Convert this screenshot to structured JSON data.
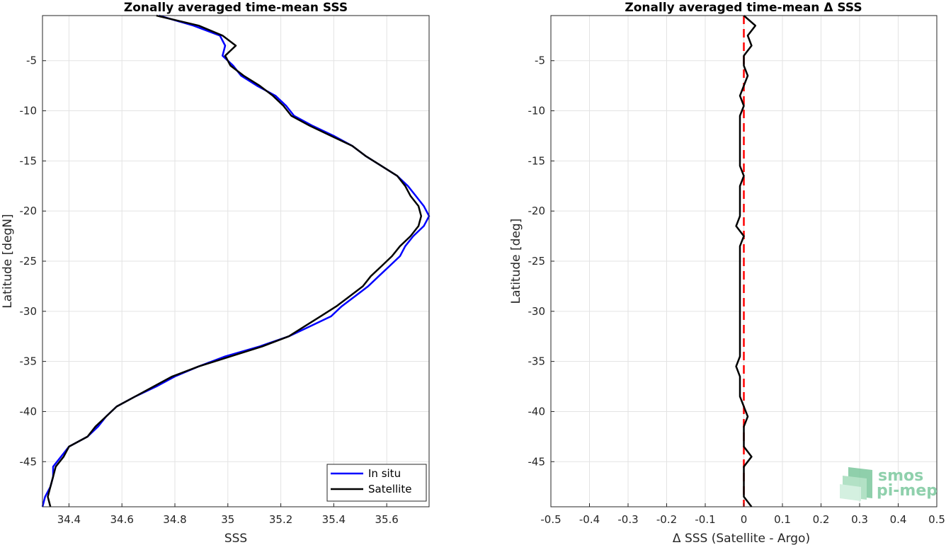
{
  "chart_data": [
    {
      "type": "line",
      "title": "Zonally averaged time-mean SSS",
      "xlabel": "SSS",
      "ylabel": "Latitude [degN]",
      "xlim": [
        34.3,
        35.76
      ],
      "ylim": [
        -49.5,
        -0.5
      ],
      "xticks": [
        "34.4",
        "34.6",
        "34.8",
        "35",
        "35.2",
        "35.4",
        "35.6"
      ],
      "yticks": [
        "-5",
        "-10",
        "-15",
        "-20",
        "-25",
        "-30",
        "-35",
        "-40",
        "-45"
      ],
      "grid": true,
      "legend_position": "bottom-right",
      "latitudes": [
        -0.5,
        -1.5,
        -2.5,
        -3.5,
        -4.5,
        -5.5,
        -6.5,
        -7.5,
        -8.5,
        -9.5,
        -10.5,
        -11.5,
        -12.5,
        -13.5,
        -14.5,
        -15.5,
        -16.5,
        -17.5,
        -18.5,
        -19.5,
        -20.5,
        -21.5,
        -22.5,
        -23.5,
        -24.5,
        -25.5,
        -26.5,
        -27.5,
        -28.5,
        -29.5,
        -30.5,
        -31.5,
        -32.5,
        -33.5,
        -34.5,
        -35.5,
        -36.5,
        -37.5,
        -38.5,
        -39.5,
        -40.5,
        -41.5,
        -42.5,
        -43.5,
        -44.5,
        -45.5,
        -46.5,
        -47.5,
        -48.5,
        -49.5
      ],
      "series": [
        {
          "name": "In situ",
          "color": "#0000ff",
          "values": [
            34.74,
            34.87,
            34.97,
            34.99,
            34.98,
            35.02,
            35.05,
            35.11,
            35.18,
            35.22,
            35.25,
            35.32,
            35.4,
            35.47,
            35.52,
            35.58,
            35.64,
            35.68,
            35.71,
            35.74,
            35.76,
            35.74,
            35.7,
            35.67,
            35.65,
            35.61,
            35.57,
            35.53,
            35.48,
            35.43,
            35.39,
            35.31,
            35.23,
            35.12,
            34.99,
            34.89,
            34.8,
            34.73,
            34.65,
            34.58,
            34.54,
            34.51,
            34.47,
            34.4,
            34.37,
            34.34,
            34.34,
            34.33,
            34.31,
            34.3
          ]
        },
        {
          "name": "Satellite",
          "color": "#000000",
          "values": [
            34.73,
            34.89,
            34.98,
            35.03,
            34.99,
            35.01,
            35.06,
            35.12,
            35.17,
            35.21,
            35.24,
            35.31,
            35.39,
            35.47,
            35.52,
            35.58,
            35.64,
            35.67,
            35.69,
            35.72,
            35.73,
            35.72,
            35.69,
            35.65,
            35.62,
            35.58,
            35.54,
            35.51,
            35.46,
            35.41,
            35.35,
            35.29,
            35.23,
            35.13,
            35.01,
            34.89,
            34.79,
            34.72,
            34.65,
            34.58,
            34.54,
            34.5,
            34.47,
            34.4,
            34.38,
            34.35,
            34.34,
            34.33,
            34.32,
            34.33
          ]
        }
      ]
    },
    {
      "type": "line",
      "title": "Zonally averaged time-mean Δ SSS",
      "xlabel": "Δ SSS (Satellite - Argo)",
      "ylabel": "Latitude [deg]",
      "xlim": [
        -0.5,
        0.5
      ],
      "ylim": [
        -49.5,
        -0.5
      ],
      "xticks": [
        "-0.5",
        "-0.4",
        "-0.3",
        "-0.2",
        "-0.1",
        "0",
        "0.1",
        "0.2",
        "0.3",
        "0.4",
        "0.5"
      ],
      "yticks": [
        "-5",
        "-10",
        "-15",
        "-20",
        "-25",
        "-30",
        "-35",
        "-40",
        "-45"
      ],
      "grid": true,
      "reference_line": {
        "x": 0,
        "color": "#ff0000",
        "style": "dashed"
      },
      "latitudes": [
        -0.5,
        -1.5,
        -2.5,
        -3.5,
        -4.5,
        -5.5,
        -6.5,
        -7.5,
        -8.5,
        -9.5,
        -10.5,
        -11.5,
        -12.5,
        -13.5,
        -14.5,
        -15.5,
        -16.5,
        -17.5,
        -18.5,
        -19.5,
        -20.5,
        -21.5,
        -22.5,
        -23.5,
        -24.5,
        -25.5,
        -26.5,
        -27.5,
        -28.5,
        -29.5,
        -30.5,
        -31.5,
        -32.5,
        -33.5,
        -34.5,
        -35.5,
        -36.5,
        -37.5,
        -38.5,
        -39.5,
        -40.5,
        -41.5,
        -42.5,
        -43.5,
        -44.5,
        -45.5,
        -46.5,
        -47.5,
        -48.5,
        -49.5
      ],
      "series": [
        {
          "name": "",
          "color": "#000000",
          "values": [
            0.0,
            0.03,
            0.01,
            0.02,
            0.0,
            0.0,
            0.01,
            0.0,
            -0.01,
            0.0,
            -0.01,
            -0.01,
            -0.01,
            -0.01,
            -0.01,
            -0.01,
            0.0,
            -0.01,
            -0.01,
            -0.01,
            -0.01,
            -0.02,
            0.0,
            -0.01,
            -0.01,
            -0.01,
            -0.01,
            -0.01,
            -0.01,
            -0.01,
            -0.01,
            -0.01,
            -0.01,
            -0.01,
            -0.01,
            -0.02,
            -0.01,
            -0.01,
            -0.01,
            0.0,
            0.01,
            0.0,
            0.0,
            0.0,
            0.02,
            0.0,
            0.0,
            0.0,
            0.0,
            0.02
          ]
        }
      ]
    }
  ],
  "logo": {
    "line1": "smos",
    "line2": "pi-mep",
    "color": "#8fd0ac"
  }
}
